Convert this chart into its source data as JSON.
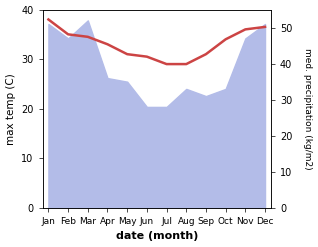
{
  "months": [
    "Jan",
    "Feb",
    "Mar",
    "Apr",
    "May",
    "Jun",
    "Jul",
    "Aug",
    "Sep",
    "Oct",
    "Nov",
    "Dec"
  ],
  "month_indices": [
    0,
    1,
    2,
    3,
    4,
    5,
    6,
    7,
    8,
    9,
    10,
    11
  ],
  "max_temp": [
    38,
    35,
    34.5,
    33,
    31,
    30.5,
    29,
    29,
    31,
    34,
    36,
    36.5
  ],
  "precipitation": [
    51,
    47,
    52,
    36,
    35,
    28,
    28,
    33,
    31,
    33,
    47,
    51
  ],
  "temp_color": "#cc4444",
  "precip_color": "#b3bce8",
  "ylabel_left": "max temp (C)",
  "ylabel_right": "med. precipitation (kg/m2)",
  "xlabel": "date (month)",
  "ylim_left": [
    0,
    40
  ],
  "ylim_right": [
    0,
    55
  ],
  "yticks_left": [
    0,
    10,
    20,
    30,
    40
  ],
  "yticks_right": [
    0,
    10,
    20,
    30,
    40,
    50
  ],
  "fig_width": 3.18,
  "fig_height": 2.47,
  "dpi": 100
}
